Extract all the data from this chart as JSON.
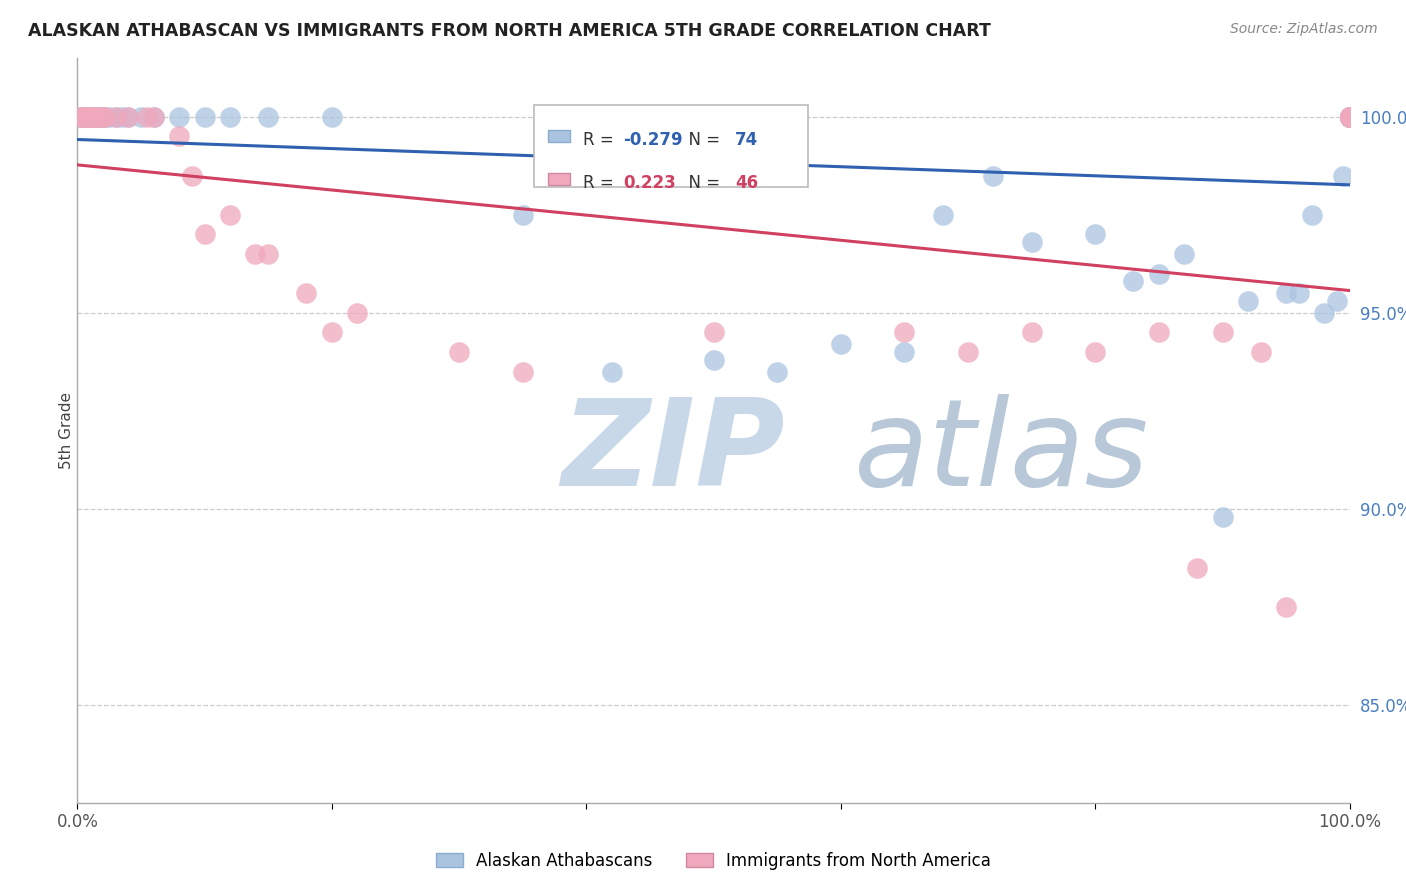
{
  "title": "ALASKAN ATHABASCAN VS IMMIGRANTS FROM NORTH AMERICA 5TH GRADE CORRELATION CHART",
  "source": "Source: ZipAtlas.com",
  "ylabel": "5th Grade",
  "xlim": [
    0.0,
    100.0
  ],
  "ylim": [
    82.5,
    101.5
  ],
  "yticks": [
    85.0,
    90.0,
    95.0,
    100.0
  ],
  "blue_R": -0.279,
  "blue_N": 74,
  "pink_R": 0.223,
  "pink_N": 46,
  "blue_color": "#aac4e0",
  "pink_color": "#f0a8bc",
  "blue_line_color": "#3060b0",
  "pink_line_color": "#d04060",
  "legend_label_blue": "Alaskan Athabascans",
  "legend_label_pink": "Immigrants from North America",
  "blue_x": [
    0.3,
    0.5,
    0.6,
    0.7,
    0.8,
    0.9,
    1.0,
    1.1,
    1.2,
    1.3,
    1.4,
    1.5,
    1.6,
    1.7,
    2.0,
    2.2,
    2.5,
    3.0,
    3.5,
    4.0,
    5.0,
    6.0,
    8.0,
    10.0,
    12.0,
    15.0,
    20.0,
    35.0,
    42.0,
    50.0,
    55.0,
    60.0,
    65.0,
    68.0,
    72.0,
    75.0,
    80.0,
    83.0,
    85.0,
    87.0,
    90.0,
    92.0,
    95.0,
    96.0,
    97.0,
    98.0,
    99.0,
    99.5,
    100.0,
    100.0,
    100.0,
    100.0,
    100.0,
    100.0,
    100.0,
    100.0,
    100.0,
    100.0,
    100.0,
    100.0,
    100.0,
    100.0,
    100.0,
    100.0,
    100.0,
    100.0,
    100.0,
    100.0,
    100.0,
    100.0,
    100.0,
    100.0,
    100.0,
    100.0
  ],
  "blue_y": [
    100.0,
    100.0,
    100.0,
    100.0,
    100.0,
    100.0,
    100.0,
    100.0,
    100.0,
    100.0,
    100.0,
    100.0,
    100.0,
    100.0,
    100.0,
    100.0,
    100.0,
    100.0,
    100.0,
    100.0,
    100.0,
    100.0,
    100.0,
    100.0,
    100.0,
    100.0,
    100.0,
    97.5,
    93.5,
    93.8,
    93.5,
    94.2,
    94.0,
    97.5,
    98.5,
    96.8,
    97.0,
    95.8,
    96.0,
    96.5,
    89.8,
    95.3,
    95.5,
    95.5,
    97.5,
    95.0,
    95.3,
    98.5,
    100.0,
    100.0,
    100.0,
    100.0,
    100.0,
    100.0,
    100.0,
    100.0,
    100.0,
    100.0,
    100.0,
    100.0,
    100.0,
    100.0,
    100.0,
    100.0,
    100.0,
    100.0,
    100.0,
    100.0,
    100.0,
    100.0,
    100.0,
    100.0,
    100.0,
    100.0
  ],
  "pink_x": [
    0.2,
    0.4,
    0.5,
    0.6,
    0.8,
    0.9,
    1.0,
    1.1,
    1.2,
    1.4,
    1.5,
    1.7,
    2.0,
    2.2,
    3.0,
    4.0,
    5.5,
    6.0,
    8.0,
    9.0,
    10.0,
    12.0,
    14.0,
    15.0,
    18.0,
    20.0,
    22.0,
    30.0,
    35.0,
    50.0,
    65.0,
    70.0,
    75.0,
    80.0,
    85.0,
    88.0,
    90.0,
    93.0,
    95.0,
    100.0,
    100.0,
    100.0,
    100.0,
    100.0,
    100.0,
    100.0
  ],
  "pink_y": [
    100.0,
    100.0,
    100.0,
    100.0,
    100.0,
    100.0,
    100.0,
    100.0,
    100.0,
    100.0,
    100.0,
    100.0,
    100.0,
    100.0,
    100.0,
    100.0,
    100.0,
    100.0,
    99.5,
    98.5,
    97.0,
    97.5,
    96.5,
    96.5,
    95.5,
    94.5,
    95.0,
    94.0,
    93.5,
    94.5,
    94.5,
    94.0,
    94.5,
    94.0,
    94.5,
    88.5,
    94.5,
    94.0,
    87.5,
    100.0,
    100.0,
    100.0,
    100.0,
    100.0,
    100.0,
    100.0
  ],
  "background_color": "#ffffff",
  "grid_color": "#cccccc",
  "watermark_zip": "ZIP",
  "watermark_atlas": "atlas",
  "watermark_color_zip": "#c8d8e8",
  "watermark_color_atlas": "#b8c8d8"
}
